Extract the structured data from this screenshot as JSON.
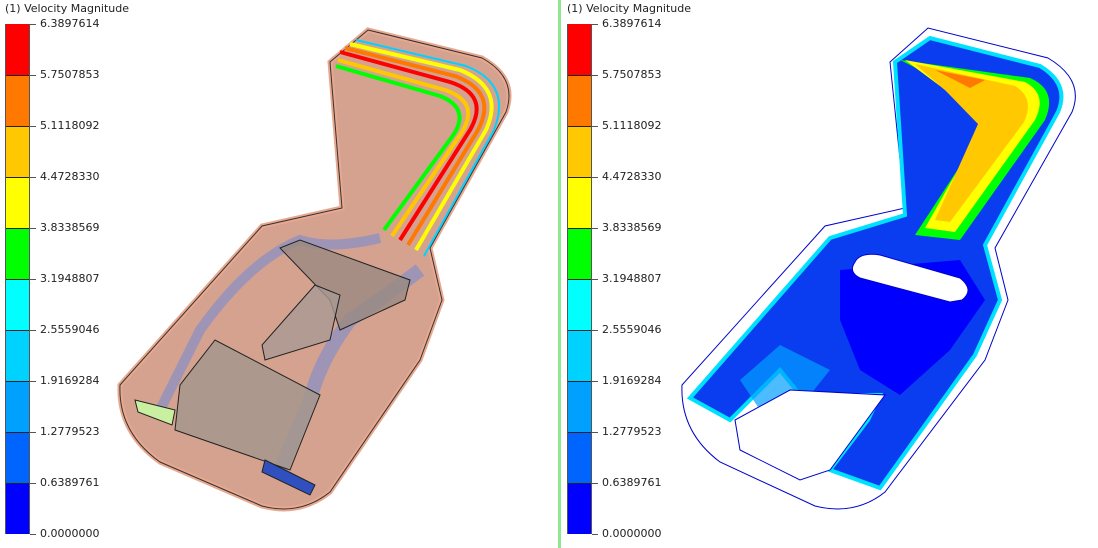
{
  "legend": {
    "title": "(1) Velocity Magnitude",
    "labels": [
      "6.3897614",
      "5.7507853",
      "5.1118092",
      "4.4728330",
      "3.8338569",
      "3.1948807",
      "2.5559046",
      "1.9169284",
      "1.2779523",
      "0.6389761",
      "0.0000000"
    ],
    "colors": [
      "#ff0000",
      "#ff7800",
      "#ffc800",
      "#ffff00",
      "#00ff00",
      "#00ffff",
      "#00d2ff",
      "#00a0ff",
      "#0064ff",
      "#0000ff"
    ]
  },
  "panels": [
    {
      "legend_title": "(1) Velocity Magnitude",
      "view": "streamlines on shaded geometry"
    },
    {
      "legend_title": "(1) Velocity Magnitude",
      "view": "contour plane"
    }
  ]
}
